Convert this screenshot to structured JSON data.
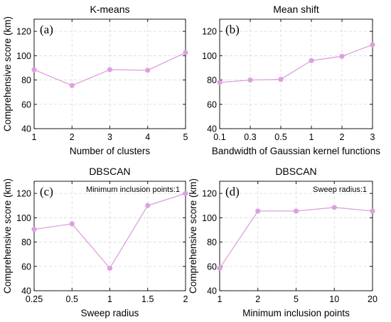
{
  "colors": {
    "series": "#dda0dd",
    "marker": "#dda0dd",
    "grid": "#d9d9d9"
  },
  "chart_data": [
    {
      "type": "line",
      "panel_label": "(a)",
      "title": "K-means",
      "xlabel": "Number of clusters",
      "ylabel": "Comprehensive score (km)",
      "categories": [
        "1",
        "2",
        "3",
        "4",
        "5"
      ],
      "values": [
        88.5,
        75.5,
        88.5,
        88,
        102.5
      ],
      "ylim": [
        40,
        130
      ],
      "yticks": [
        40,
        60,
        80,
        100,
        120
      ],
      "grid": true,
      "annotation": ""
    },
    {
      "type": "line",
      "panel_label": "(b)",
      "title": "Mean shift",
      "xlabel": "Bandwidth of Gaussian kernel functions",
      "ylabel": "",
      "categories": [
        "0.1",
        "0.3",
        "0.5",
        "1",
        "2",
        "3"
      ],
      "values": [
        78,
        80,
        80.5,
        96,
        99.5,
        109
      ],
      "ylim": [
        40,
        130
      ],
      "yticks": [
        40,
        60,
        80,
        100,
        120
      ],
      "grid": true,
      "annotation": ""
    },
    {
      "type": "line",
      "panel_label": "(c)",
      "title": "DBSCAN",
      "xlabel": "Sweep radius",
      "ylabel": "Comprehensive score (km)",
      "categories": [
        "0.25",
        "0.5",
        "1",
        "1.5",
        "2"
      ],
      "values": [
        90.5,
        95,
        58.5,
        110,
        120
      ],
      "ylim": [
        40,
        130
      ],
      "yticks": [
        40,
        60,
        80,
        100,
        120
      ],
      "grid": true,
      "annotation": "Minimum inclusion points:1"
    },
    {
      "type": "line",
      "panel_label": "(d)",
      "title": "DBSCAN",
      "xlabel": "Minimum inclusion points",
      "ylabel": "Comprehensive score (km)",
      "categories": [
        "1",
        "2",
        "5",
        "10",
        "20"
      ],
      "values": [
        58.5,
        105.5,
        105.5,
        108.5,
        105.5
      ],
      "ylim": [
        40,
        130
      ],
      "yticks": [
        40,
        60,
        80,
        100,
        120
      ],
      "grid": true,
      "annotation": "Sweep radius:1"
    }
  ]
}
